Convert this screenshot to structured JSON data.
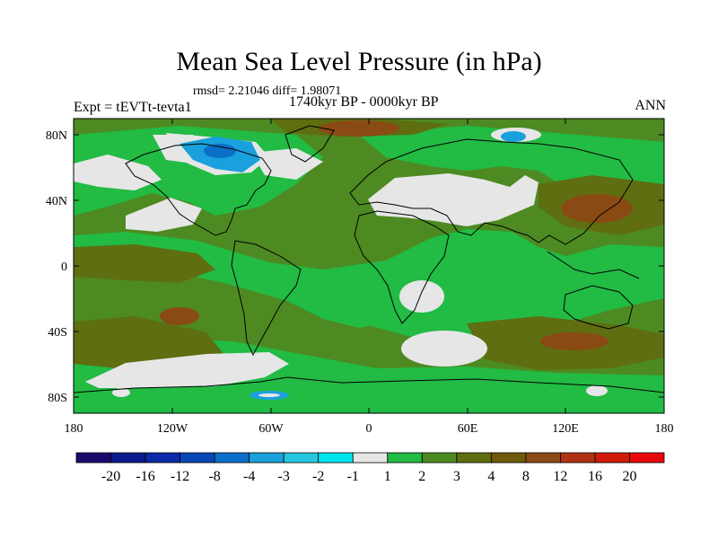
{
  "title": "Mean Sea Level Pressure (in hPa)",
  "stats": "rmsd= 2.21046 diff= 1.98071",
  "experiment": "Expt = tEVTt-tevta1",
  "period": "1740kyr BP - 0000kyr BP",
  "season": "ANN",
  "lat_labels": [
    "80N",
    "40N",
    "0",
    "40S",
    "80S"
  ],
  "lon_labels": [
    "180",
    "120W",
    "60W",
    "0",
    "60E",
    "120E",
    "180"
  ],
  "colorbar": {
    "labels": [
      "-20",
      "-16",
      "-12",
      "-8",
      "-4",
      "-3",
      "-2",
      "-1",
      "1",
      "2",
      "3",
      "4",
      "8",
      "12",
      "16",
      "20"
    ],
    "colors": [
      "#1a0a6e",
      "#0d1a8c",
      "#0a2aa8",
      "#0a45b8",
      "#0a6fc8",
      "#1aa0dc",
      "#26c6e0",
      "#00e6f0",
      "#e6e6e6",
      "#22bb44",
      "#4d8a22",
      "#5e6e10",
      "#6e5a0a",
      "#8a4a14",
      "#b03214",
      "#d01a0a",
      "#e80a0a"
    ]
  },
  "legend_colors": {
    "white": "#e6e6e6",
    "green_light": "#22bb44",
    "green_dark": "#4d8a22",
    "olive": "#5e6e10",
    "brown": "#8a4a14",
    "blue_light": "#1aa0dc",
    "blue_mid": "#0a6fc8",
    "blue_dark": "#0a2aa8"
  }
}
